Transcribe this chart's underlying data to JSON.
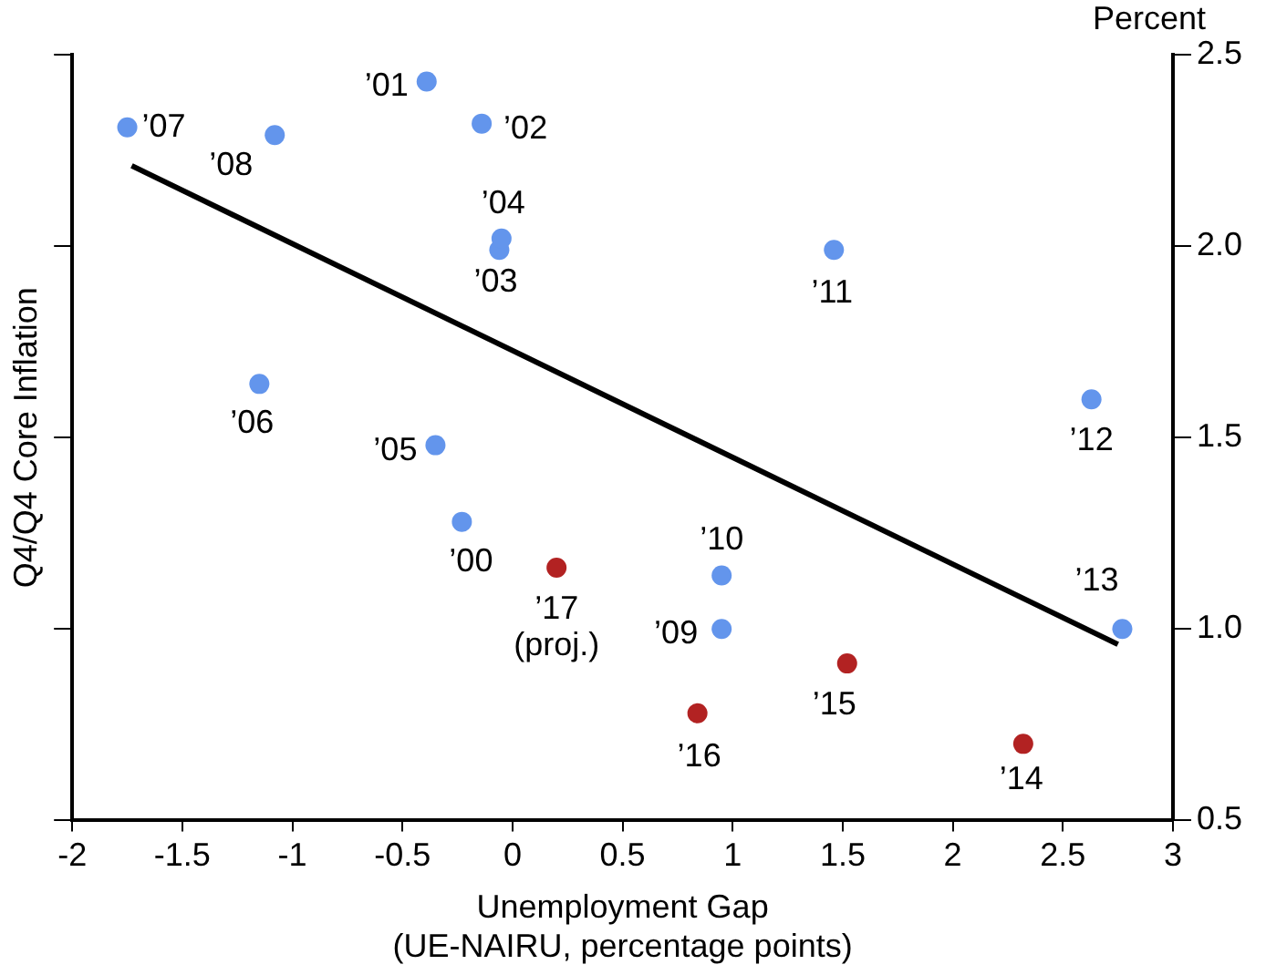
{
  "chart_data": {
    "type": "scatter",
    "xlabel": "Unemployment Gap\n(UE-NAIRU, percentage points)",
    "ylabel": "Q4/Q4 Core Inflation",
    "y2label": "Percent",
    "series": [
      {
        "color": "#6395ec",
        "x": [
          -0.23,
          -0.39,
          -0.14,
          -0.06,
          -0.05,
          -0.35,
          -1.15,
          -1.75,
          -1.08,
          0.95,
          0.95,
          1.46,
          2.63,
          2.77
        ],
        "values": [
          1.28,
          2.43,
          2.32,
          1.99,
          2.02,
          1.48,
          1.64,
          2.31,
          2.29,
          1.0,
          1.14,
          1.99,
          1.6,
          1.0
        ]
      },
      {
        "color": "#b22222",
        "x": [
          2.32,
          1.52,
          0.84,
          0.2
        ],
        "values": [
          0.7,
          0.91,
          0.78,
          1.16
        ]
      },
      {
        "type": "line",
        "marker": "none",
        "color": "#000000",
        "x": [
          -1.73,
          2.75
        ],
        "values": [
          2.21,
          0.96
        ]
      }
    ],
    "annotations": [
      {
        "text": "’00",
        "x": -0.23,
        "y": 1.28
      },
      {
        "text": "’01",
        "x": -0.39,
        "y": 2.43
      },
      {
        "text": "’02",
        "x": -0.14,
        "y": 2.32
      },
      {
        "text": "’03",
        "x": -0.06,
        "y": 1.99
      },
      {
        "text": "’04",
        "x": -0.05,
        "y": 2.02
      },
      {
        "text": "’05",
        "x": -0.35,
        "y": 1.48
      },
      {
        "text": "’06",
        "x": -1.15,
        "y": 1.64
      },
      {
        "text": "’07",
        "x": -1.75,
        "y": 2.31
      },
      {
        "text": "’08",
        "x": -1.08,
        "y": 2.29
      },
      {
        "text": "’09",
        "x": 0.95,
        "y": 1.0
      },
      {
        "text": "’10",
        "x": 0.95,
        "y": 1.14
      },
      {
        "text": "’11",
        "x": 1.46,
        "y": 1.99
      },
      {
        "text": "’12",
        "x": 2.63,
        "y": 1.6
      },
      {
        "text": "’13",
        "x": 2.77,
        "y": 1.0
      },
      {
        "text": "’14",
        "x": 2.32,
        "y": 0.7
      },
      {
        "text": "’15",
        "x": 1.52,
        "y": 0.91
      },
      {
        "text": "’16",
        "x": 0.84,
        "y": 0.78
      },
      {
        "text": "’17\n(proj.)",
        "x": 0.2,
        "y": 1.16
      }
    ],
    "xlim": [
      -2,
      3
    ],
    "xticks": [
      -2,
      -1.5,
      -1,
      -0.5,
      0,
      0.5,
      1,
      1.5,
      2,
      2.5,
      3
    ],
    "ylim": [
      0.5,
      2.5
    ],
    "yticks": [
      0.5,
      {
        "value": 1,
        "label": "1.0"
      },
      1.5,
      {
        "value": 2,
        "label": "2.0"
      },
      2.5
    ],
    "marker": "circle",
    "grid": false,
    "legend": false
  }
}
